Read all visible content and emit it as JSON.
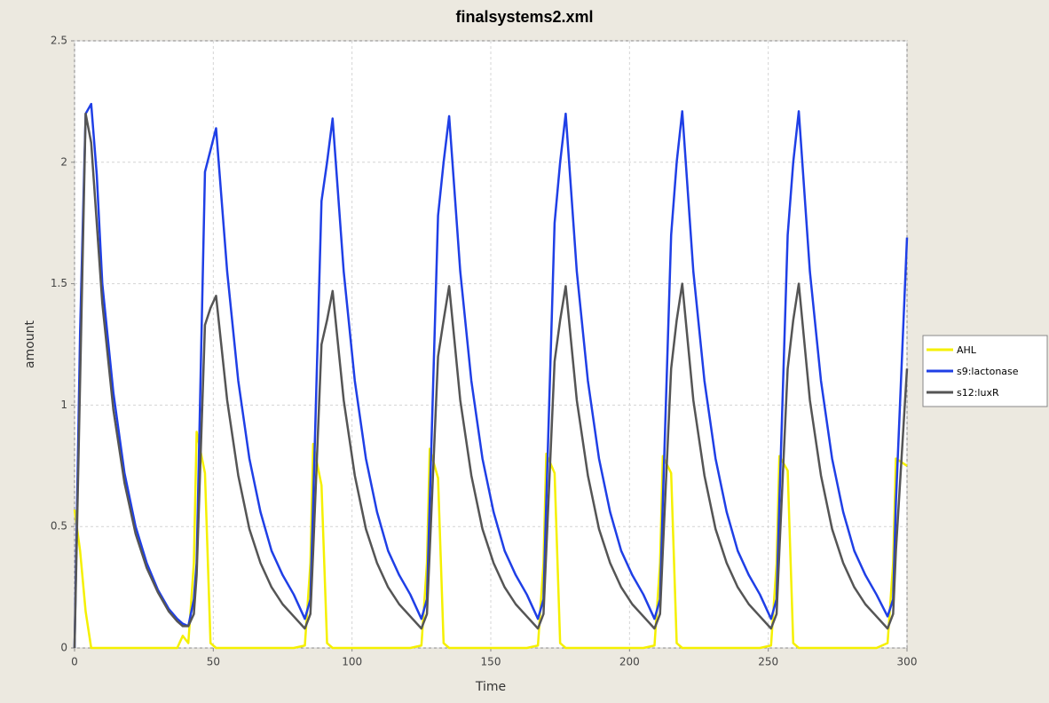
{
  "chart_data": {
    "type": "line",
    "title": "finalsystems2.xml",
    "x_label": "Time",
    "y_label": "amount",
    "x": [
      0,
      2,
      4,
      6,
      8,
      10,
      14,
      18,
      22,
      26,
      30,
      34,
      37,
      39,
      41,
      43,
      44,
      47,
      49,
      51,
      55,
      59,
      63,
      67,
      71,
      75,
      79,
      83,
      85,
      86,
      89,
      91,
      93,
      97,
      101,
      105,
      109,
      113,
      117,
      121,
      125,
      127,
      128,
      131,
      133,
      135,
      139,
      143,
      147,
      151,
      155,
      159,
      163,
      167,
      169,
      170,
      173,
      175,
      177,
      181,
      185,
      189,
      193,
      197,
      201,
      205,
      209,
      211,
      212,
      215,
      217,
      219,
      223,
      227,
      231,
      235,
      239,
      243,
      247,
      251,
      253,
      254,
      257,
      259,
      261,
      265,
      269,
      273,
      277,
      281,
      285,
      289,
      293,
      295,
      296,
      300
    ],
    "series": [
      {
        "name": "AHL",
        "color": "#f5f000",
        "values": [
          0.57,
          0.4,
          0.15,
          0,
          0,
          0,
          0,
          0,
          0,
          0,
          0,
          0,
          0,
          0.05,
          0.02,
          0.35,
          0.89,
          0.72,
          0.02,
          0,
          0,
          0,
          0,
          0,
          0,
          0,
          0,
          0.01,
          0.35,
          0.84,
          0.67,
          0.02,
          0,
          0,
          0,
          0,
          0,
          0,
          0,
          0,
          0.01,
          0.35,
          0.82,
          0.7,
          0.02,
          0,
          0,
          0,
          0,
          0,
          0,
          0,
          0,
          0.01,
          0.35,
          0.8,
          0.72,
          0.02,
          0,
          0,
          0,
          0,
          0,
          0,
          0,
          0,
          0.01,
          0.35,
          0.79,
          0.72,
          0.02,
          0,
          0,
          0,
          0,
          0,
          0,
          0,
          0,
          0.01,
          0.35,
          0.79,
          0.73,
          0.02,
          0,
          0,
          0,
          0,
          0,
          0,
          0,
          0,
          0.02,
          0.35,
          0.78,
          0.75
        ]
      },
      {
        "name": "s9:lactonase",
        "color": "#1f3fe6",
        "values": [
          0,
          1.3,
          2.2,
          2.24,
          1.95,
          1.5,
          1.05,
          0.72,
          0.5,
          0.35,
          0.24,
          0.16,
          0.12,
          0.1,
          0.09,
          0.2,
          0.35,
          1.96,
          2.05,
          2.14,
          1.55,
          1.1,
          0.78,
          0.56,
          0.4,
          0.3,
          0.22,
          0.12,
          0.2,
          0.6,
          1.84,
          2.0,
          2.18,
          1.55,
          1.1,
          0.78,
          0.56,
          0.4,
          0.3,
          0.22,
          0.12,
          0.2,
          0.6,
          1.78,
          2.0,
          2.19,
          1.55,
          1.1,
          0.78,
          0.56,
          0.4,
          0.3,
          0.22,
          0.12,
          0.2,
          0.6,
          1.75,
          2.0,
          2.2,
          1.55,
          1.1,
          0.78,
          0.56,
          0.4,
          0.3,
          0.22,
          0.12,
          0.2,
          0.6,
          1.7,
          2.0,
          2.21,
          1.55,
          1.1,
          0.78,
          0.56,
          0.4,
          0.3,
          0.22,
          0.12,
          0.2,
          0.6,
          1.7,
          2.0,
          2.21,
          1.55,
          1.1,
          0.78,
          0.56,
          0.4,
          0.3,
          0.22,
          0.13,
          0.2,
          0.6,
          1.69
        ]
      },
      {
        "name": "s12:luxR",
        "color": "#555555",
        "values": [
          0,
          1.1,
          2.2,
          2.08,
          1.75,
          1.42,
          0.98,
          0.68,
          0.47,
          0.33,
          0.23,
          0.15,
          0.11,
          0.09,
          0.09,
          0.14,
          0.3,
          1.33,
          1.4,
          1.45,
          1.02,
          0.71,
          0.49,
          0.35,
          0.25,
          0.18,
          0.13,
          0.08,
          0.14,
          0.4,
          1.25,
          1.35,
          1.47,
          1.02,
          0.71,
          0.49,
          0.35,
          0.25,
          0.18,
          0.13,
          0.08,
          0.14,
          0.4,
          1.2,
          1.35,
          1.49,
          1.02,
          0.71,
          0.49,
          0.35,
          0.25,
          0.18,
          0.13,
          0.08,
          0.14,
          0.4,
          1.18,
          1.35,
          1.49,
          1.02,
          0.71,
          0.49,
          0.35,
          0.25,
          0.18,
          0.13,
          0.08,
          0.14,
          0.4,
          1.15,
          1.35,
          1.5,
          1.02,
          0.71,
          0.49,
          0.35,
          0.25,
          0.18,
          0.13,
          0.08,
          0.14,
          0.4,
          1.15,
          1.35,
          1.5,
          1.02,
          0.71,
          0.49,
          0.35,
          0.25,
          0.18,
          0.13,
          0.08,
          0.14,
          0.4,
          1.15
        ]
      }
    ],
    "xlim": [
      0,
      300
    ],
    "xticks": [
      0,
      50,
      100,
      150,
      200,
      250,
      300
    ],
    "ylim": [
      0,
      2.5
    ],
    "yticks": [
      0,
      0.5,
      1,
      1.5,
      2,
      2.5
    ],
    "grid": true,
    "legend": "right"
  }
}
